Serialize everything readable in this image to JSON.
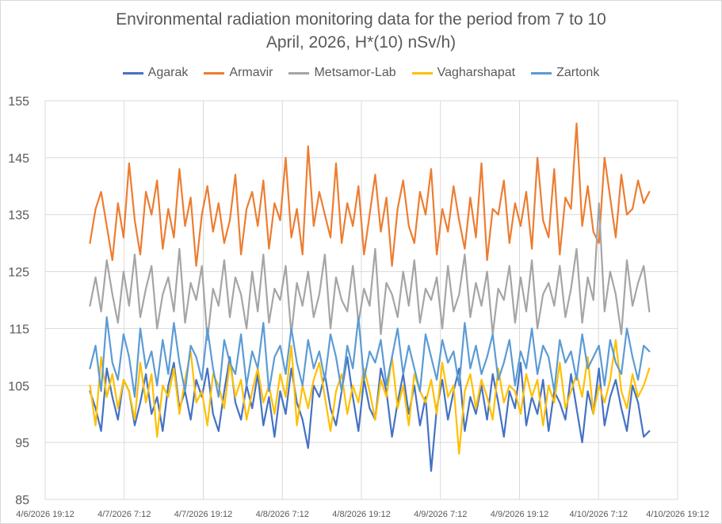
{
  "chart_data": {
    "type": "line",
    "title_lines": [
      "Environmental radiation monitoring data for the period from 7 to 10",
      "April, 2026, H*(10) nSv/h)"
    ],
    "xlabel": "",
    "ylabel": "",
    "ylim": [
      85,
      155
    ],
    "yticks": [
      85,
      95,
      105,
      115,
      125,
      135,
      145,
      155
    ],
    "ytick_labels": [
      "85",
      "95",
      "105",
      "115",
      "125",
      "135",
      "145",
      "155"
    ],
    "xlim_hours": [
      0,
      96
    ],
    "xtick_hours": [
      0,
      12,
      24,
      36,
      48,
      60,
      72,
      84,
      96
    ],
    "xtick_labels": [
      "4/6/2026 19:12",
      "4/7/2026 7:12",
      "4/7/2026 19:12",
      "4/8/2026 7:12",
      "4/8/2026 19:12",
      "4/9/2026 7:12",
      "4/9/2026 19:12",
      "4/10/2026 7:12",
      "4/10/2026 19:12"
    ],
    "x_units": "hours since 4/6/2026 19:12",
    "grid": true,
    "legend_position": "top",
    "series": [
      {
        "name": "Agarak",
        "color": "#4472c4",
        "x_start": 6.8,
        "x_end": 91.7,
        "values": [
          104,
          101,
          97,
          108,
          103,
          99,
          106,
          104,
          98,
          102,
          107,
          100,
          103,
          97,
          105,
          109,
          101,
          104,
          99,
          106,
          103,
          108,
          100,
          97,
          104,
          110,
          102,
          99,
          105,
          101,
          107,
          98,
          103,
          96,
          104,
          100,
          108,
          102,
          99,
          94,
          105,
          103,
          107,
          101,
          98,
          104,
          110,
          103,
          97,
          106,
          101,
          99,
          108,
          104,
          96,
          102,
          107,
          100,
          105,
          98,
          103,
          90,
          101,
          106,
          99,
          104,
          108,
          97,
          103,
          100,
          105,
          99,
          107,
          102,
          96,
          104,
          101,
          109,
          98,
          103,
          100,
          106,
          97,
          104,
          102,
          99,
          107,
          101,
          95,
          104,
          100,
          108,
          98,
          103,
          106,
          101,
          97,
          105,
          102,
          96,
          97
        ]
      },
      {
        "name": "Armavir",
        "color": "#ed7d31",
        "x_start": 6.8,
        "x_end": 91.7,
        "values": [
          130,
          136,
          139,
          133,
          127,
          137,
          131,
          144,
          134,
          128,
          139,
          135,
          141,
          129,
          136,
          131,
          143,
          133,
          138,
          126,
          135,
          140,
          132,
          137,
          130,
          134,
          142,
          128,
          136,
          139,
          133,
          141,
          129,
          137,
          134,
          145,
          131,
          136,
          128,
          147,
          133,
          139,
          135,
          131,
          144,
          130,
          137,
          133,
          140,
          128,
          135,
          142,
          132,
          138,
          126,
          136,
          141,
          133,
          130,
          139,
          135,
          143,
          128,
          136,
          132,
          140,
          134,
          129,
          138,
          131,
          144,
          127,
          136,
          135,
          141,
          130,
          137,
          133,
          139,
          129,
          145,
          134,
          131,
          143,
          128,
          138,
          136,
          151,
          133,
          140,
          132,
          130,
          145,
          138,
          131,
          142,
          135,
          136,
          141,
          137,
          139
        ]
      },
      {
        "name": "Metsamor-Lab",
        "color": "#a5a5a5",
        "x_start": 6.8,
        "x_end": 91.7,
        "values": [
          119,
          124,
          118,
          127,
          121,
          116,
          125,
          119,
          128,
          117,
          122,
          126,
          115,
          121,
          124,
          118,
          129,
          116,
          123,
          120,
          126,
          113,
          122,
          119,
          127,
          117,
          124,
          121,
          115,
          125,
          118,
          128,
          116,
          122,
          120,
          126,
          114,
          123,
          119,
          125,
          117,
          121,
          128,
          115,
          124,
          120,
          118,
          126,
          116,
          122,
          119,
          129,
          114,
          123,
          121,
          117,
          125,
          119,
          127,
          116,
          122,
          120,
          124,
          115,
          126,
          118,
          121,
          128,
          117,
          123,
          119,
          125,
          114,
          122,
          120,
          126,
          116,
          124,
          118,
          127,
          115,
          121,
          123,
          119,
          126,
          117,
          122,
          129,
          116,
          124,
          120,
          137,
          118,
          125,
          121,
          114,
          127,
          119,
          123,
          126,
          118
        ]
      },
      {
        "name": "Vagharshapat",
        "color": "#ffc000",
        "x_start": 6.8,
        "x_end": 91.7,
        "values": [
          105,
          98,
          110,
          103,
          107,
          101,
          106,
          104,
          99,
          109,
          102,
          107,
          96,
          105,
          103,
          108,
          100,
          106,
          111,
          102,
          104,
          98,
          107,
          105,
          101,
          109,
          103,
          106,
          99,
          104,
          108,
          102,
          105,
          100,
          107,
          103,
          112,
          98,
          105,
          101,
          106,
          109,
          103,
          97,
          104,
          107,
          100,
          105,
          102,
          108,
          104,
          99,
          106,
          103,
          110,
          101,
          105,
          98,
          107,
          104,
          102,
          106,
          100,
          109,
          103,
          105,
          93,
          104,
          107,
          101,
          106,
          103,
          99,
          108,
          102,
          105,
          104,
          100,
          107,
          103,
          106,
          98,
          105,
          102,
          109,
          101,
          104,
          107,
          103,
          110,
          100,
          105,
          102,
          106,
          113,
          104,
          101,
          107,
          103,
          105,
          108
        ]
      },
      {
        "name": "Zartonk",
        "color": "#5b9bd5",
        "x_start": 6.8,
        "x_end": 91.7,
        "values": [
          108,
          112,
          104,
          117,
          109,
          106,
          114,
          110,
          103,
          115,
          108,
          111,
          105,
          113,
          107,
          116,
          109,
          104,
          112,
          110,
          106,
          115,
          108,
          103,
          113,
          109,
          107,
          114,
          105,
          111,
          108,
          116,
          104,
          110,
          112,
          107,
          115,
          109,
          105,
          113,
          108,
          111,
          106,
          114,
          110,
          104,
          112,
          108,
          117,
          106,
          111,
          109,
          113,
          105,
          110,
          115,
          107,
          112,
          108,
          104,
          114,
          110,
          106,
          113,
          109,
          111,
          105,
          116,
          108,
          112,
          107,
          110,
          114,
          106,
          109,
          113,
          105,
          111,
          108,
          115,
          107,
          112,
          110,
          104,
          113,
          109,
          111,
          106,
          114,
          108,
          110,
          112,
          105,
          113,
          109,
          107,
          115,
          110,
          106,
          112,
          111
        ]
      }
    ]
  }
}
